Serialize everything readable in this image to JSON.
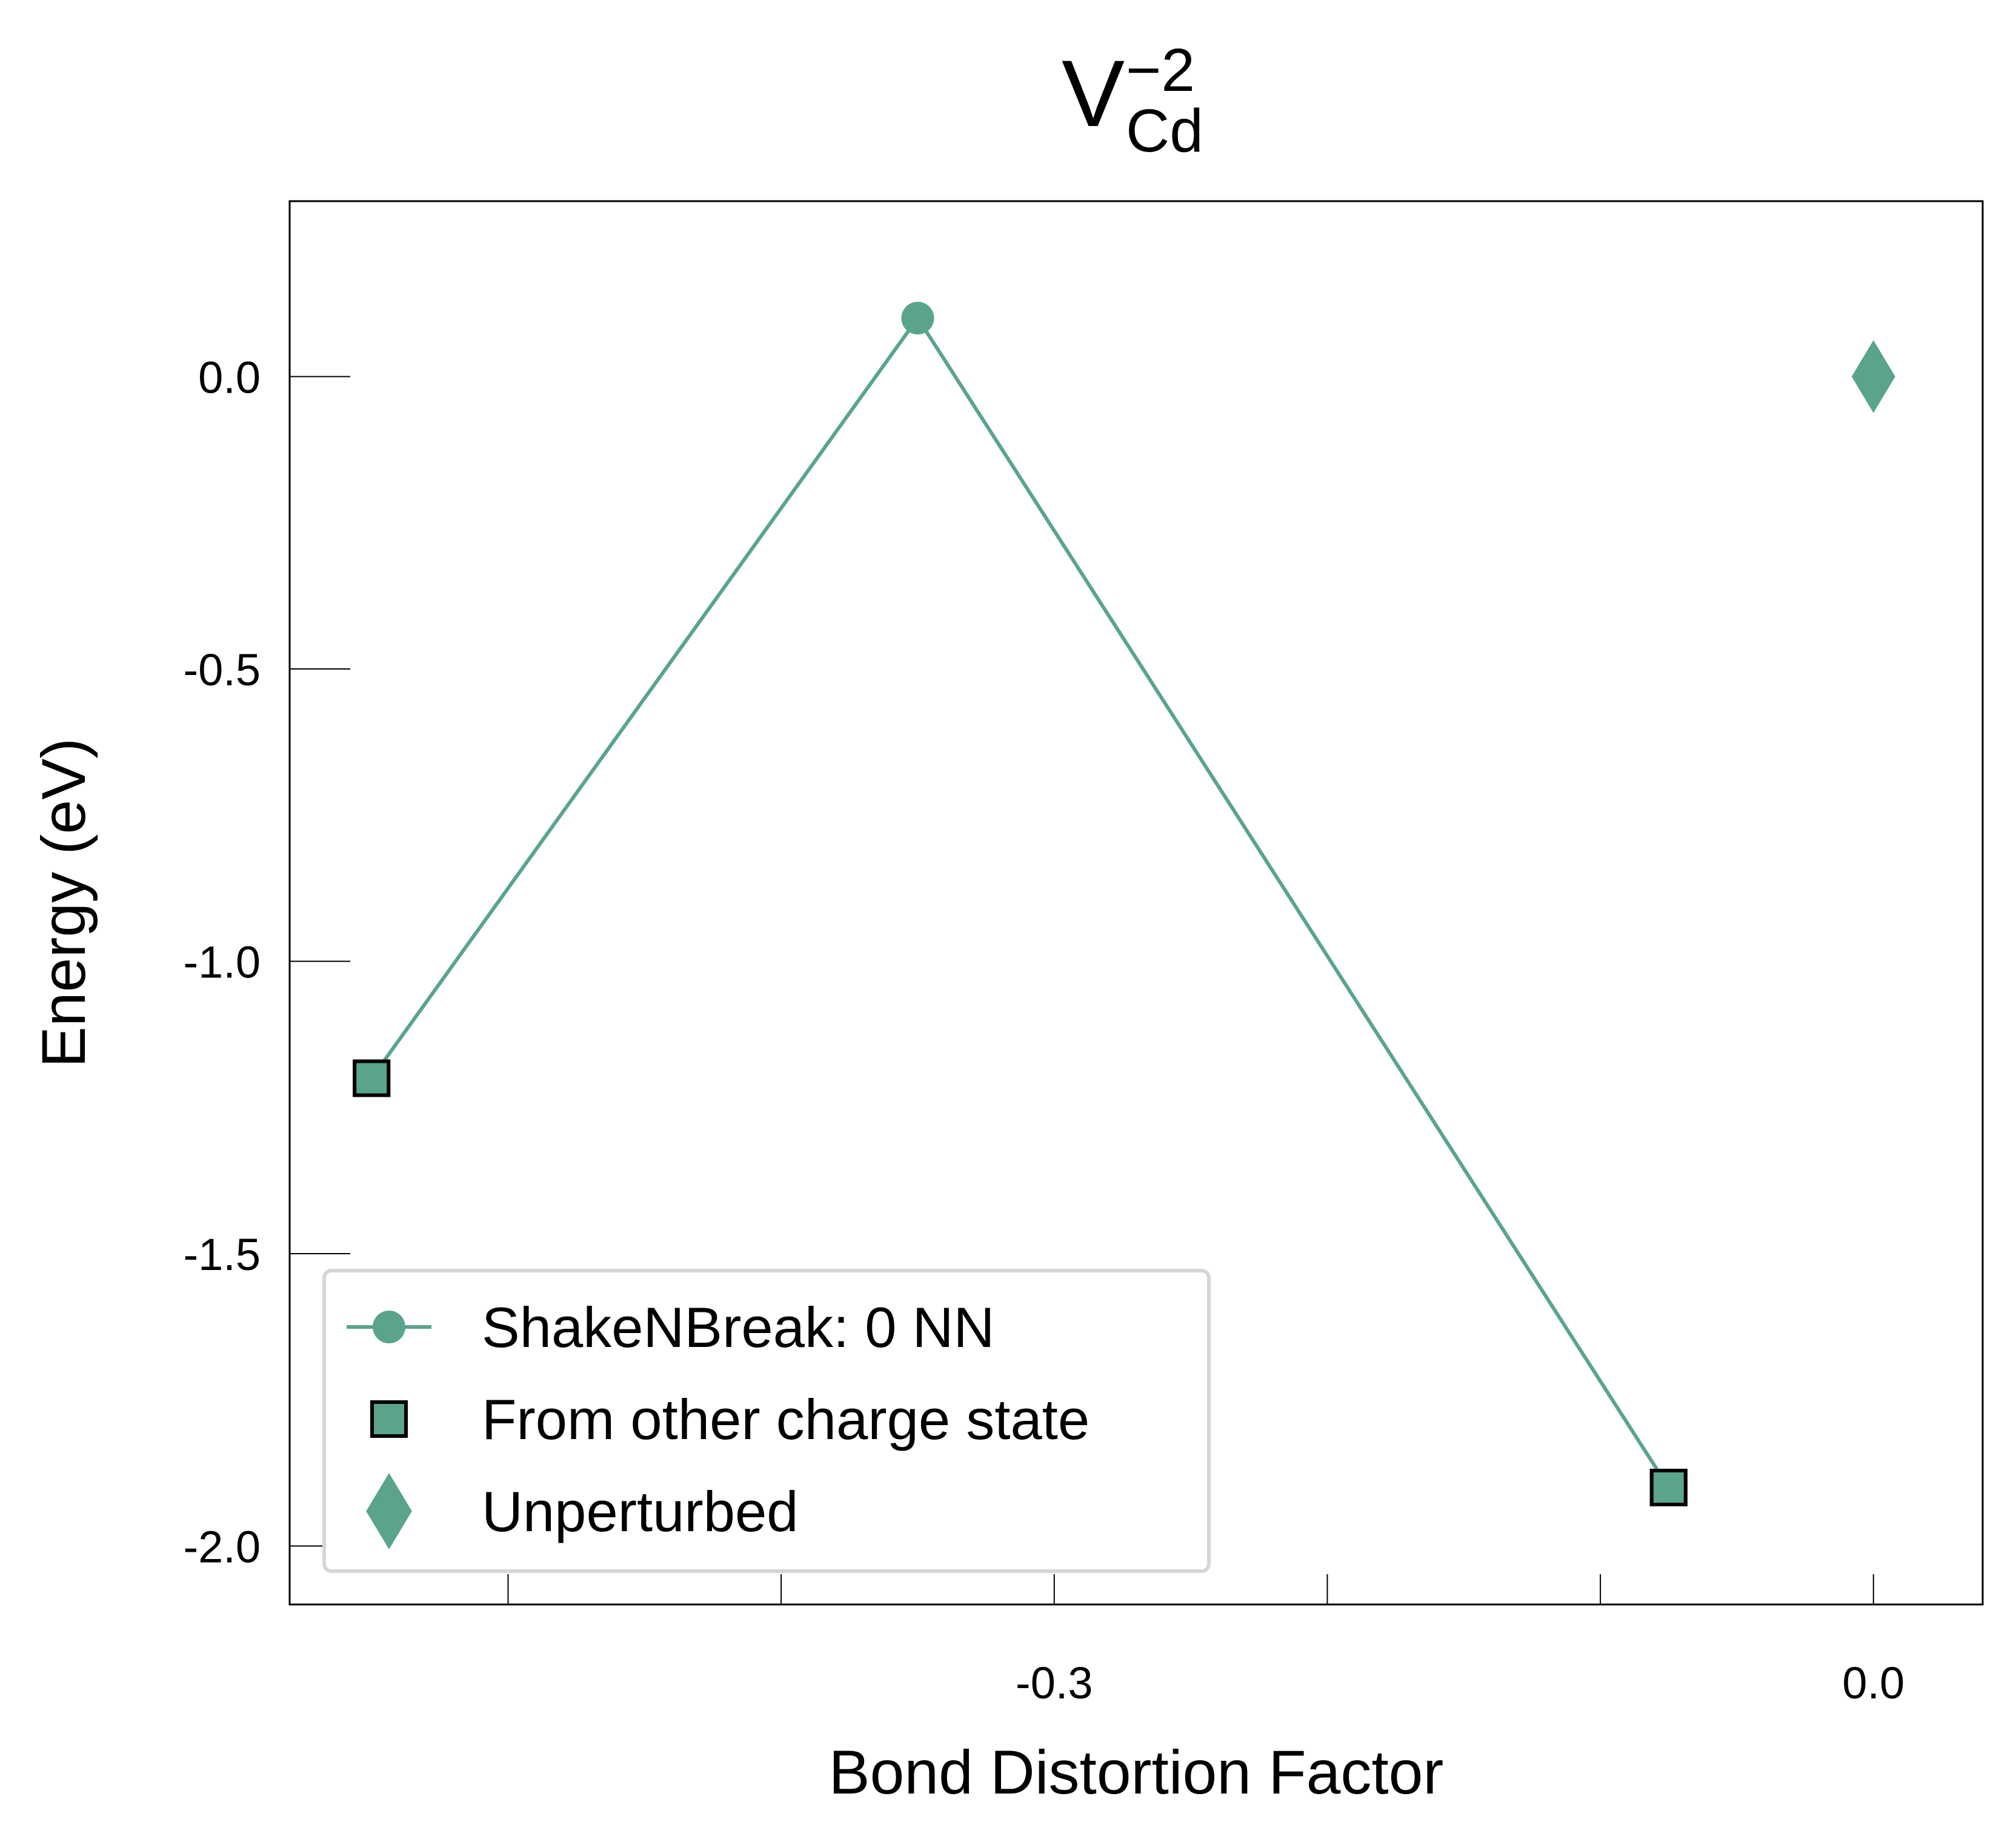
{
  "chart_data": {
    "type": "scatter",
    "title": {
      "base": "V",
      "subscript": "Cd",
      "superscript": "−2"
    },
    "xlabel": "Bond Distortion Factor",
    "ylabel": "Energy (eV)",
    "xlim": [
      -0.58,
      0.04
    ],
    "ylim": [
      -2.1,
      0.3
    ],
    "xticks": [
      {
        "value": -0.5,
        "label": ""
      },
      {
        "value": -0.4,
        "label": ""
      },
      {
        "value": -0.3,
        "label": "-0.3"
      },
      {
        "value": -0.2,
        "label": ""
      },
      {
        "value": -0.1,
        "label": ""
      },
      {
        "value": 0.0,
        "label": "0.0"
      }
    ],
    "yticks": [
      {
        "value": 0.0,
        "label": "0.0"
      },
      {
        "value": -0.5,
        "label": "-0.5"
      },
      {
        "value": -1.0,
        "label": "-1.0"
      },
      {
        "value": -1.5,
        "label": "-1.5"
      },
      {
        "value": -2.0,
        "label": "-2.0"
      }
    ],
    "grid": false,
    "legend_position": "lower-left",
    "colors": {
      "series": "#5aa48c",
      "edge": "#000000"
    },
    "series": [
      {
        "name": "ShakeNBreak: 0 NN",
        "marker": "circle",
        "line": true,
        "points": [
          {
            "x": -0.55,
            "y": -1.2,
            "marker": "square"
          },
          {
            "x": -0.35,
            "y": 0.1,
            "marker": "circle"
          },
          {
            "x": -0.075,
            "y": -1.9,
            "marker": "square"
          }
        ]
      },
      {
        "name": "From other charge state",
        "marker": "square",
        "line": false,
        "points": [
          {
            "x": -0.55,
            "y": -1.2
          },
          {
            "x": -0.075,
            "y": -1.9
          }
        ]
      },
      {
        "name": "Unperturbed",
        "marker": "diamond",
        "line": false,
        "points": [
          {
            "x": 0.0,
            "y": 0.0
          }
        ]
      }
    ]
  }
}
